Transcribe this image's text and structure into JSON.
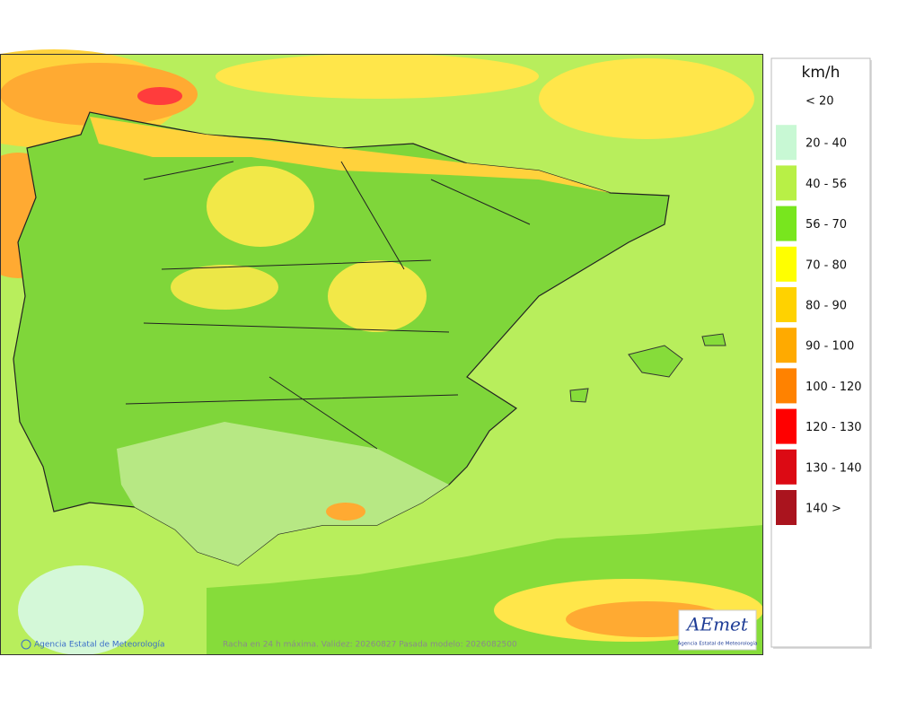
{
  "legend": {
    "unit": "km/h",
    "items": [
      {
        "label": "< 20",
        "color": "#ffffff"
      },
      {
        "label": "20 - 40",
        "color": "#c8f8d4"
      },
      {
        "label": "40 - 56",
        "color": "#b8f046"
      },
      {
        "label": "56 - 70",
        "color": "#78e61e"
      },
      {
        "label": "70 - 80",
        "color": "#ffff00"
      },
      {
        "label": "80 - 90",
        "color": "#ffd200"
      },
      {
        "label": "90 - 100",
        "color": "#ffaa00"
      },
      {
        "label": "100 - 120",
        "color": "#ff8200"
      },
      {
        "label": "120 - 130",
        "color": "#ff0000"
      },
      {
        "label": "130 - 140",
        "color": "#dc0a14"
      },
      {
        "label": "140 >",
        "color": "#aa141e"
      }
    ]
  },
  "footer": {
    "credit": "Agencia Estatal de Meteorología",
    "caption": "Racha en 24 h máxima. Validez: 20260827 Pasada modelo: 2026082500"
  },
  "logo": {
    "name": "AEmet",
    "subtitle": "Agencia Estatal de Meteorología"
  }
}
